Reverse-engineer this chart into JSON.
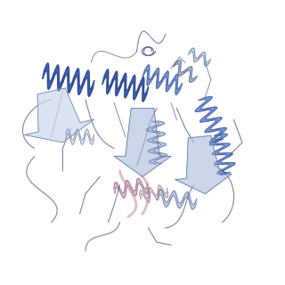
{
  "background_color": "#ffffff",
  "figsize": [
    3.2,
    3.2
  ],
  "dpi": 100,
  "colors": {
    "dark_blue": "#3355aa",
    "medium_blue": "#6688cc",
    "light_blue": "#aabbdd",
    "very_light_blue": "#ccd8ee",
    "pink": "#ddaabb",
    "light_pink": "#eecccc",
    "gray_blue": "#8899bb",
    "outline": "#223366",
    "loop_gray": "#99aabb"
  }
}
